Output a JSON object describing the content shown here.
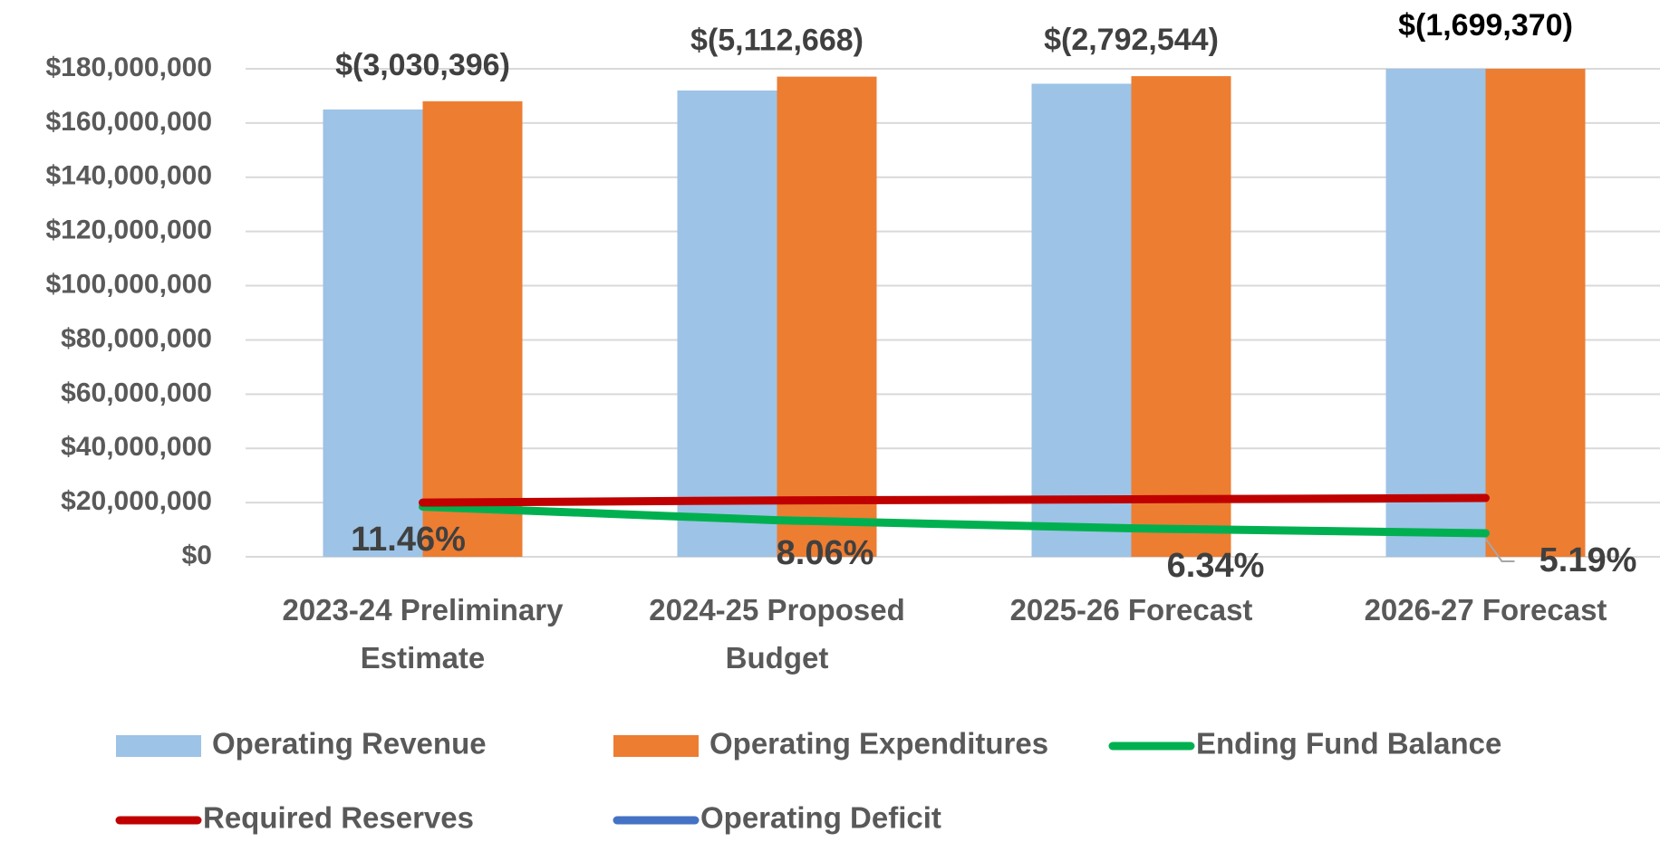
{
  "chart_data": {
    "type": "bar",
    "categories": [
      "2023-24 Preliminary Estimate",
      "2024-25 Proposed Budget",
      "2025-26 Forecast",
      "2026-27 Forecast"
    ],
    "series": [
      {
        "name": "Operating Revenue",
        "type": "bar",
        "color": "#9dc3e6",
        "values": [
          165000000,
          172000000,
          174500000,
          181000000
        ]
      },
      {
        "name": "Operating Expenditures",
        "type": "bar",
        "color": "#ed7d31",
        "values": [
          168030396,
          177112668,
          177292544,
          182699370
        ]
      },
      {
        "name": "Ending Fund Balance",
        "type": "line",
        "color": "#00b050",
        "values": [
          18500000,
          13500000,
          10500000,
          8700000
        ]
      },
      {
        "name": "Required Reserves",
        "type": "line",
        "color": "#c00000",
        "values": [
          20000000,
          20800000,
          21200000,
          21700000
        ]
      },
      {
        "name": "Operating Deficit",
        "type": "line",
        "color": "#4472c4",
        "values": [
          -3030396,
          -5112668,
          -2792544,
          -1699370
        ],
        "value_labels": [
          "$(3,030,396)",
          "$(5,112,668)",
          "$(2,792,544)",
          "$(1,699,370)"
        ]
      }
    ],
    "annotations": [
      "11.46%",
      "8.06%",
      "6.34%",
      "5.19%"
    ],
    "ylim": [
      0,
      180000000
    ],
    "yticks": [
      {
        "value": 0,
        "label": "$0"
      },
      {
        "value": 20000000,
        "label": "$20,000,000"
      },
      {
        "value": 40000000,
        "label": "$40,000,000"
      },
      {
        "value": 60000000,
        "label": "$60,000,000"
      },
      {
        "value": 80000000,
        "label": "$80,000,000"
      },
      {
        "value": 100000000,
        "label": "$100,000,000"
      },
      {
        "value": 120000000,
        "label": "$120,000,000"
      },
      {
        "value": 140000000,
        "label": "$140,000,000"
      },
      {
        "value": 160000000,
        "label": "$160,000,000"
      },
      {
        "value": 180000000,
        "label": "$180,000,000"
      }
    ],
    "grid": true,
    "legend": "bottom"
  }
}
